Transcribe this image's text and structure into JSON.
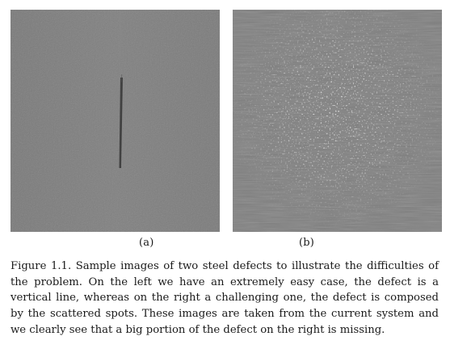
{
  "figure": {
    "panels": [
      {
        "label": "(a)",
        "content": "steel-surface-vertical-line-defect"
      },
      {
        "label": "(b)",
        "content": "steel-surface-scattered-spots-defect"
      }
    ],
    "caption": "Figure 1.1.  Sample images of two steel defects to illustrate the difficulties of the problem.  On the left we have an extremely easy case, the defect is a vertical line, whereas on the right a challenging one, the defect is composed by the scattered spots.  These images are taken from the current system and we clearly see that a big portion of the defect on the right is missing.",
    "colors": {
      "steel_gray": "#7e7e7e",
      "line_defect": "#3d3d3d",
      "spot_defect": "#bdbdbd"
    }
  }
}
